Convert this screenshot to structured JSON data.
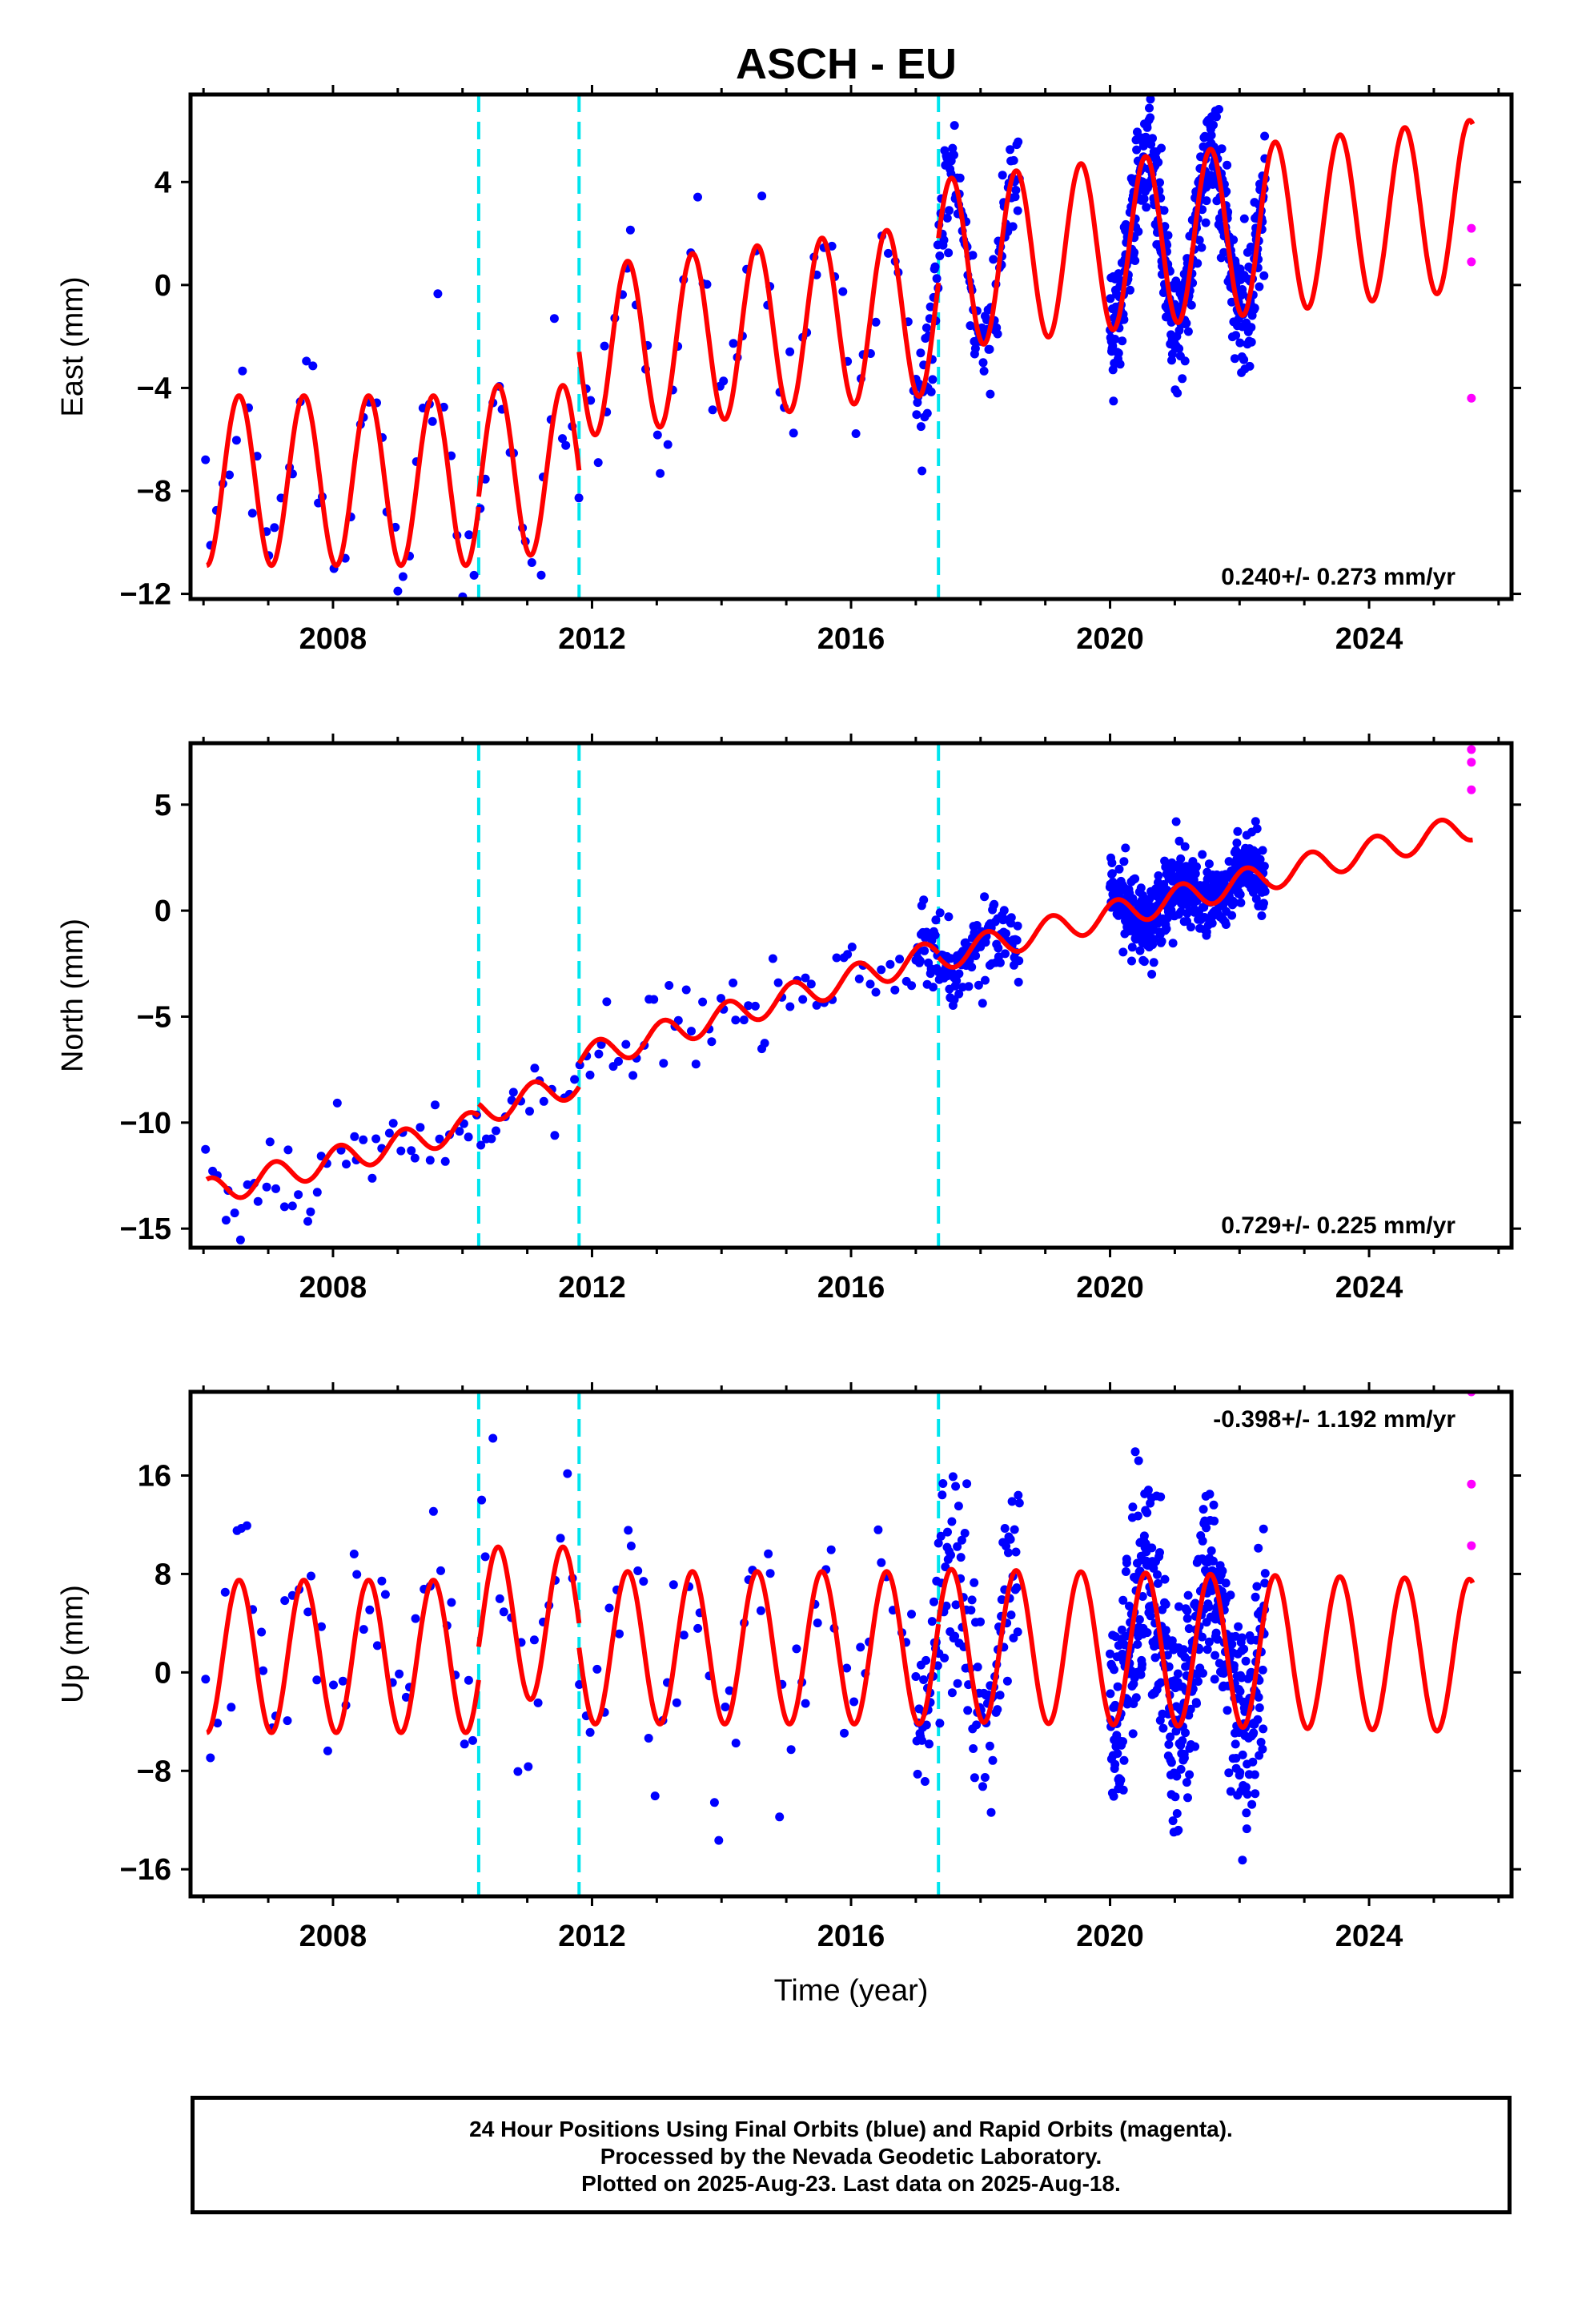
{
  "title": "ASCH - EU",
  "caption": [
    "24 Hour Positions Using Final Orbits (blue) and Rapid Orbits (magenta).",
    "Processed by the Nevada Geodetic Laboratory.",
    "Plotted on 2025-Aug-23. Last data on 2025-Aug-18."
  ],
  "colors": {
    "final_orbits": "#0000ff",
    "rapid_orbits": "#ff00ff",
    "model_fit": "#ff0000",
    "equipment_change": "#00e5ee"
  },
  "chart_data": [
    {
      "type": "scatter",
      "panel": "East",
      "ylabel": "East (mm)",
      "xlabel": "",
      "xlim": [
        2005.8,
        2026.2
      ],
      "ylim": [
        -12.2,
        7.4
      ],
      "x_ticks": [
        2008,
        2012,
        2016,
        2020,
        2024
      ],
      "y_ticks": [
        -12,
        -8,
        -4,
        0,
        4
      ],
      "rate_label": "0.240+/- 0.273 mm/yr",
      "rate_label_position": "bottom-right",
      "discontinuities": [
        2010.25,
        2011.8,
        2017.35
      ],
      "model": {
        "segments": [
          [
            2006.05,
            2010.25,
            -7.6,
            0.0
          ],
          [
            2010.25,
            2011.8,
            -7.2,
            0.0
          ],
          [
            2011.8,
            2017.35,
            -2.6,
            0.3
          ],
          [
            2017.35,
            2025.6,
            0.8,
            0.28
          ]
        ],
        "amplitude": 3.3,
        "phase_peak": 0.55
      },
      "rapid_points": [
        [
          2025.58,
          2.2
        ],
        [
          2025.58,
          0.9
        ],
        [
          2025.58,
          -4.4
        ]
      ],
      "final_point_seed": 11,
      "final_point_noise": 1.2,
      "final_data_density": [
        [
          2006.05,
          2017.0,
          0.09
        ],
        [
          2017.0,
          2018.6,
          0.012
        ],
        [
          2020.0,
          2022.4,
          0.005
        ]
      ]
    },
    {
      "type": "scatter",
      "panel": "North",
      "ylabel": "North (mm)",
      "xlabel": "",
      "xlim": [
        2005.8,
        2026.2
      ],
      "ylim": [
        -15.9,
        7.9
      ],
      "x_ticks": [
        2008,
        2012,
        2016,
        2020,
        2024
      ],
      "y_ticks": [
        -15,
        -10,
        -5,
        0,
        5
      ],
      "rate_label": "0.729+/- 0.225 mm/yr",
      "rate_label_position": "bottom-right",
      "discontinuities": [
        2010.25,
        2011.8,
        2017.35
      ],
      "model": {
        "segments": [
          [
            2006.05,
            2010.25,
            -13.3,
            0.77
          ],
          [
            2010.25,
            2011.8,
            -9.5,
            0.9
          ],
          [
            2011.8,
            2017.35,
            -7.0,
            0.9
          ],
          [
            2017.35,
            2025.6,
            -2.2,
            0.75
          ]
        ],
        "amplitude": 0.65,
        "phase_peak": 0.1
      },
      "rapid_points": [
        [
          2025.58,
          7.6
        ],
        [
          2025.58,
          7.0
        ],
        [
          2025.58,
          5.7
        ]
      ],
      "final_point_seed": 23,
      "final_point_noise": 0.9,
      "final_data_density": [
        [
          2006.05,
          2017.0,
          0.09
        ],
        [
          2017.0,
          2018.6,
          0.012
        ],
        [
          2020.0,
          2022.4,
          0.005
        ]
      ]
    },
    {
      "type": "scatter",
      "panel": "Up",
      "ylabel": "Up (mm)",
      "xlabel": "Time (year)",
      "xlim": [
        2005.8,
        2026.2
      ],
      "ylim": [
        -18.2,
        22.8
      ],
      "x_ticks": [
        2008,
        2012,
        2016,
        2020,
        2024
      ],
      "y_ticks": [
        -16,
        -8,
        0,
        8,
        16
      ],
      "rate_label": "-0.398+/- 1.192 mm/yr",
      "rate_label_position": "top-right",
      "discontinuities": [
        2010.25,
        2011.8,
        2017.35
      ],
      "model": {
        "segments": [
          [
            2006.05,
            2010.25,
            1.3,
            0.0
          ],
          [
            2010.25,
            2011.8,
            4.0,
            0.0
          ],
          [
            2011.8,
            2017.35,
            2.0,
            0.0
          ],
          [
            2017.35,
            2025.6,
            2.2,
            -0.1
          ]
        ],
        "amplitude": 6.2,
        "phase_peak": 0.55
      },
      "rapid_points": [
        [
          2025.58,
          22.8
        ],
        [
          2025.58,
          15.3
        ],
        [
          2025.58,
          10.3
        ]
      ],
      "final_point_seed": 37,
      "final_point_noise": 4.2,
      "final_data_density": [
        [
          2006.05,
          2017.0,
          0.09
        ],
        [
          2017.0,
          2018.6,
          0.012
        ],
        [
          2020.0,
          2022.4,
          0.005
        ]
      ]
    }
  ]
}
